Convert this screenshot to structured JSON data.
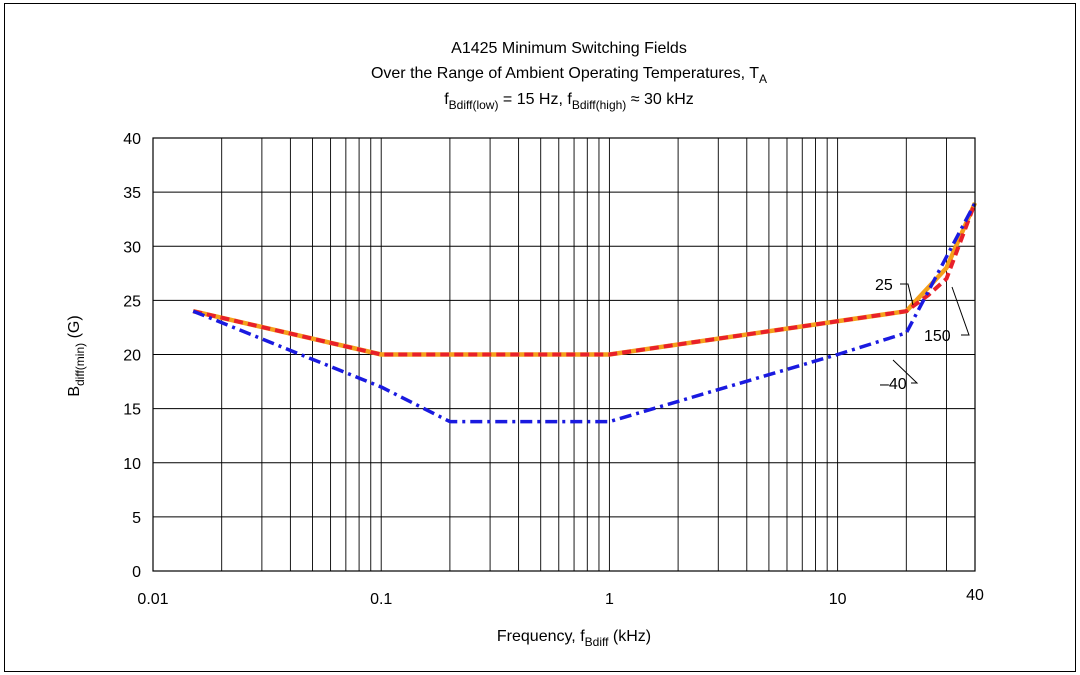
{
  "chart_data": {
    "type": "line",
    "title_line1": "A1425 Minimum Switching Fields",
    "title_line2": {
      "main": "Over the Range of Ambient Operating Temperatures, T",
      "sub": "A"
    },
    "title_line3": {
      "f1": "f",
      "f1_sub": "Bdiff(low)",
      "f1_rest": " = 15 Hz, ",
      "f2": "f",
      "f2_sub": "Bdiff(high)",
      "f2_rest": " ≈ 30 kHz"
    },
    "xlabel": {
      "main": "Frequency, f",
      "sub": "Bdiff",
      "rest": "  (kHz)"
    },
    "ylabel": {
      "main": "B",
      "sub": "diff(min)",
      "rest": " (G)"
    },
    "x_scale": "log",
    "xlim": [
      0.01,
      40
    ],
    "ylim": [
      0,
      40
    ],
    "x_ticks": [
      {
        "value": 0.01,
        "label": "0.01"
      },
      {
        "value": 0.1,
        "label": "0.1"
      },
      {
        "value": 1,
        "label": "1"
      },
      {
        "value": 10,
        "label": "10"
      },
      {
        "value": 40,
        "label": "40"
      }
    ],
    "y_ticks": [
      {
        "value": 0,
        "label": "0"
      },
      {
        "value": 5,
        "label": "5"
      },
      {
        "value": 10,
        "label": "10"
      },
      {
        "value": 15,
        "label": "15"
      },
      {
        "value": 20,
        "label": "20"
      },
      {
        "value": 25,
        "label": "25"
      },
      {
        "value": 30,
        "label": "30"
      },
      {
        "value": 35,
        "label": "35"
      },
      {
        "value": 40,
        "label": "40"
      }
    ],
    "grid": true,
    "series": [
      {
        "name": "25",
        "color": "#f5a01a",
        "style": "solid",
        "points": [
          {
            "x": 0.015,
            "y": 24
          },
          {
            "x": 0.1,
            "y": 20
          },
          {
            "x": 0.2,
            "y": 20
          },
          {
            "x": 1,
            "y": 20
          },
          {
            "x": 20,
            "y": 24
          },
          {
            "x": 30,
            "y": 28
          },
          {
            "x": 40,
            "y": 34
          }
        ]
      },
      {
        "name": "150",
        "color": "#e8202a",
        "style": "dashed",
        "points": [
          {
            "x": 0.015,
            "y": 24
          },
          {
            "x": 0.1,
            "y": 20
          },
          {
            "x": 0.2,
            "y": 20
          },
          {
            "x": 1,
            "y": 20
          },
          {
            "x": 20,
            "y": 24
          },
          {
            "x": 25,
            "y": 25.5
          },
          {
            "x": 30,
            "y": 27
          },
          {
            "x": 40,
            "y": 34
          }
        ]
      },
      {
        "name": "–40",
        "color": "#1a1ae0",
        "style": "dashdot",
        "points": [
          {
            "x": 0.015,
            "y": 24
          },
          {
            "x": 0.1,
            "y": 17
          },
          {
            "x": 0.2,
            "y": 13.8
          },
          {
            "x": 1,
            "y": 13.8
          },
          {
            "x": 10,
            "y": 20
          },
          {
            "x": 20,
            "y": 22
          },
          {
            "x": 40,
            "y": 34
          }
        ]
      }
    ]
  }
}
